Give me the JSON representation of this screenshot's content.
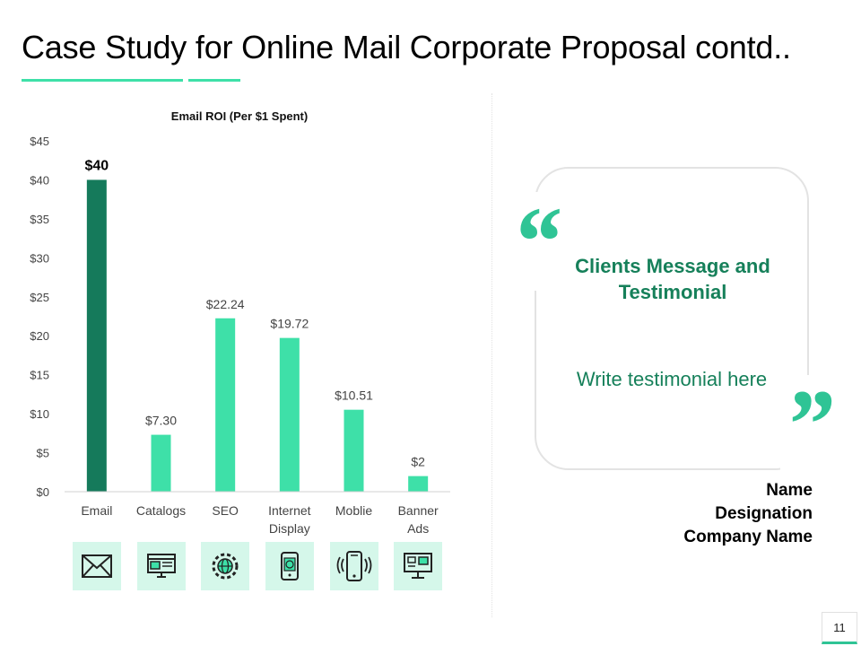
{
  "slide": {
    "title": "Case Study for Online Mail Corporate Proposal contd..",
    "page_number": "11"
  },
  "colors": {
    "accent": "#3ee0a8",
    "accent_dark": "#157a5b",
    "text_green": "#16805a",
    "icon_bg": "#d5f7ea"
  },
  "chart_data": {
    "type": "bar",
    "title": "Email ROI (Per $1 Spent)",
    "categories": [
      "Email",
      "Catalogs",
      "SEO",
      "Internet\nDisplay",
      "Moblie",
      "Banner\nAds"
    ],
    "values": [
      40,
      7.3,
      22.24,
      19.72,
      10.51,
      2
    ],
    "value_labels": [
      "$40",
      "$7.30",
      "$22.24",
      "$19.72",
      "$10.51",
      "$2"
    ],
    "highlight_index": 0,
    "yticks": [
      "$0",
      "$5",
      "$10",
      "$15",
      "$20",
      "$25",
      "$30",
      "$35",
      "$40",
      "$45"
    ],
    "ylim": [
      0,
      45
    ],
    "grid": false,
    "legend": "none"
  },
  "category_icons": [
    "envelope-icon",
    "catalog-icon",
    "seo-globe-gear-icon",
    "internet-display-phone-icon",
    "mobile-vibrate-icon",
    "banner-ads-monitor-icon"
  ],
  "testimonial": {
    "open_quote": "“",
    "close_quote": "”",
    "title": "Clients Message and Testimonial",
    "body": "Write testimonial here",
    "name": "Name",
    "designation": "Designation",
    "company": "Company Name"
  }
}
